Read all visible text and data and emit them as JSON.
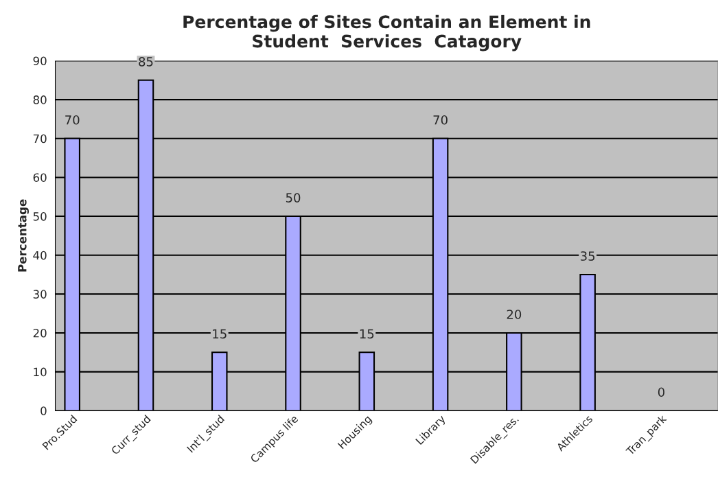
{
  "chart_data": {
    "type": "bar",
    "title": "Percentage of Sites Contain an Element in\nStudent  Services  Catagory",
    "ylabel": "Percentage",
    "categories": [
      "Pro.Stud",
      "Curr_stud",
      "Int'l_stud",
      "Campus life",
      "Housing",
      "Library",
      "Disable_res.",
      "Athletics",
      "Tran_park"
    ],
    "values": [
      70,
      85,
      15,
      50,
      15,
      70,
      20,
      35,
      0
    ],
    "color": "#aaaaff",
    "ylim": [
      0,
      90
    ],
    "yticks": [
      0,
      10,
      20,
      30,
      40,
      50,
      60,
      70,
      80,
      90
    ],
    "grid": "y",
    "data_labels": true,
    "legend": false
  }
}
